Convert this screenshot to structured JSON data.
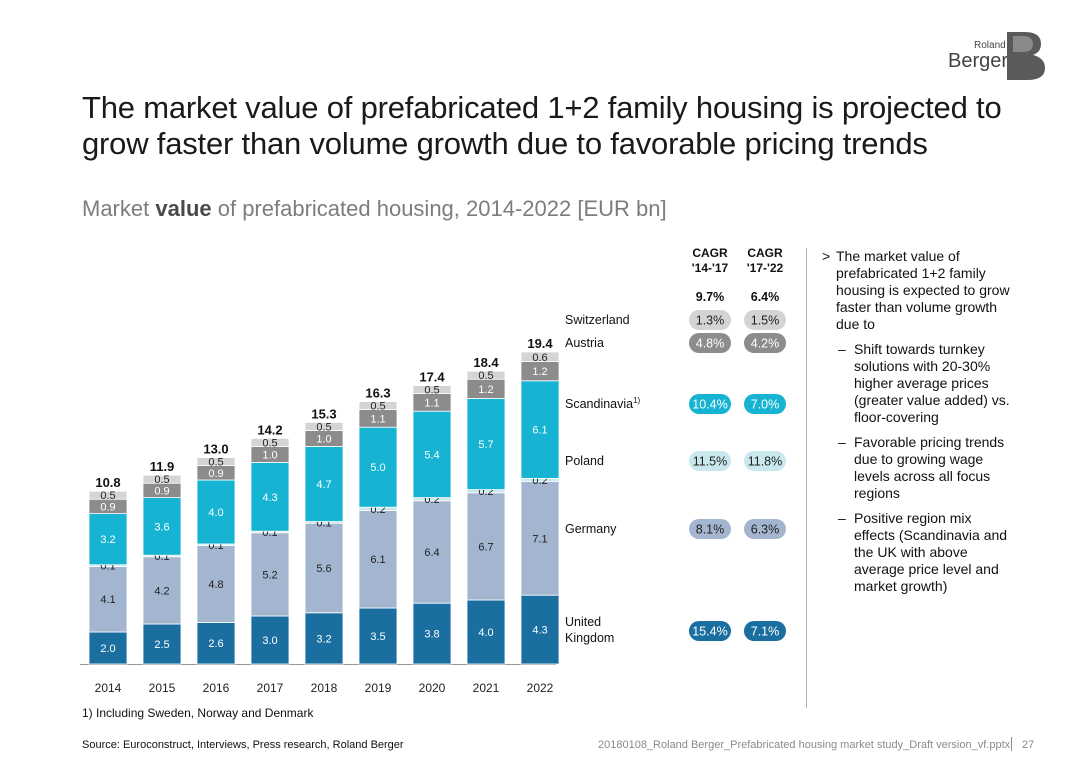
{
  "logo": {
    "small_text": "Roland",
    "big_text": "Berger"
  },
  "title": "The market value of prefabricated 1+2 family housing is projected to grow faster than volume growth due to favorable pricing trends",
  "subtitle": {
    "prefix": "Market ",
    "bold": "value",
    "suffix": " of prefabricated housing, 2014-2022 [EUR bn]"
  },
  "chart_data": {
    "type": "bar",
    "stacked": true,
    "unit": "EUR bn",
    "categories": [
      "2014",
      "2015",
      "2016",
      "2017",
      "2018",
      "2019",
      "2020",
      "2021",
      "2022"
    ],
    "series": [
      {
        "name": "United Kingdom",
        "color": "#1a6fa0",
        "label_color": "#ffffff",
        "values": [
          2.0,
          2.5,
          2.6,
          3.0,
          3.2,
          3.5,
          3.8,
          4.0,
          4.3
        ],
        "value_labels": [
          "2.0",
          "2.5",
          "2.6",
          "3.0",
          "3.2",
          "3.5",
          "3.8",
          "4.0",
          "4.3"
        ]
      },
      {
        "name": "Germany",
        "color": "#a4b6cf",
        "label_color": "#222222",
        "values": [
          4.1,
          4.2,
          4.8,
          5.2,
          5.6,
          6.1,
          6.4,
          6.7,
          7.1
        ],
        "value_labels": [
          "4.1",
          "4.2",
          "4.8",
          "5.2",
          "5.6",
          "6.1",
          "6.4",
          "6.7",
          "7.1"
        ]
      },
      {
        "name": "Poland",
        "color": "#c8e8ee",
        "label_color": "#222222",
        "values": [
          0.1,
          0.1,
          0.1,
          0.1,
          0.1,
          0.2,
          0.2,
          0.2,
          0.2
        ],
        "value_labels": [
          "0.1",
          "0.1",
          "0.1",
          "0.1",
          "0.1",
          "0.2",
          "0.2",
          "0.2",
          "0.2"
        ]
      },
      {
        "name": "Scandinavia",
        "color": "#16b4d2",
        "label_color": "#ffffff",
        "values": [
          3.2,
          3.6,
          4.0,
          4.3,
          4.7,
          5.0,
          5.4,
          5.7,
          6.1
        ],
        "value_labels": [
          "3.2",
          "3.6",
          "4.0",
          "4.3",
          "4.7",
          "5.0",
          "5.4",
          "5.7",
          "6.1"
        ]
      },
      {
        "name": "Austria",
        "color": "#8c8c8c",
        "label_color": "#ffffff",
        "values": [
          0.9,
          0.9,
          0.9,
          1.0,
          1.0,
          1.1,
          1.1,
          1.2,
          1.2
        ],
        "value_labels": [
          "0.9",
          "0.9",
          "0.9",
          "1.0",
          "1.0",
          "1.1",
          "1.1",
          "1.2",
          "1.2"
        ]
      },
      {
        "name": "Switzerland",
        "color": "#d4d4d4",
        "label_color": "#222222",
        "values": [
          0.5,
          0.5,
          0.5,
          0.5,
          0.5,
          0.5,
          0.5,
          0.5,
          0.6
        ],
        "value_labels": [
          "0.5",
          "0.5",
          "0.5",
          "0.5",
          "0.5",
          "0.5",
          "0.5",
          "0.5",
          "0.6"
        ]
      }
    ],
    "totals": [
      "10.8",
      "11.9",
      "13.0",
      "14.2",
      "15.3",
      "16.3",
      "17.4",
      "18.4",
      "19.4"
    ],
    "legend": [
      {
        "label": "Switzerland",
        "cagr_14_17": "1.3%",
        "cagr_17_22": "1.5%",
        "pill_color": "#d4d4d4",
        "text_color": "#222222"
      },
      {
        "label": "Austria",
        "cagr_14_17": "4.8%",
        "cagr_17_22": "4.2%",
        "pill_color": "#8c8c8c",
        "text_color": "#ffffff"
      },
      {
        "label": "Scandinavia",
        "sup": "1)",
        "cagr_14_17": "10.4%",
        "cagr_17_22": "7.0%",
        "pill_color": "#16b4d2",
        "text_color": "#ffffff"
      },
      {
        "label": "Poland",
        "cagr_14_17": "11.5%",
        "cagr_17_22": "11.8%",
        "pill_color": "#c8e8ee",
        "text_color": "#222222"
      },
      {
        "label": "Germany",
        "cagr_14_17": "8.1%",
        "cagr_17_22": "6.3%",
        "pill_color": "#a4b6cf",
        "text_color": "#222222"
      },
      {
        "label": "United Kingdom",
        "cagr_14_17": "15.4%",
        "cagr_17_22": "7.1%",
        "pill_color": "#1a6fa0",
        "text_color": "#ffffff"
      }
    ],
    "cagr_headers": [
      {
        "line1": "CAGR",
        "line2": "'14-'17"
      },
      {
        "line1": "CAGR",
        "line2": "'17-'22"
      }
    ],
    "cagr_totals": [
      "9.7%",
      "6.4%"
    ],
    "ylim": [
      0,
      20
    ]
  },
  "notes": {
    "marker": ">",
    "main": "The market value of prefabricated 1+2 family housing is expected to grow faster than volume growth due to",
    "sub_marker": "–",
    "subs": [
      "Shift towards turnkey solutions with 20-30% higher average prices (greater value added) vs. floor-covering",
      "Favorable pricing trends due to growing wage levels across all focus regions",
      "Positive region mix effects (Scandinavia and the UK with above average price level and market growth)"
    ]
  },
  "footnote": "1) Including Sweden, Norway and Denmark",
  "source": "Source: Euroconstruct, Interviews, Press research, Roland Berger",
  "footer_file": "20180108_Roland Berger_Prefabricated housing market study_Draft version_vf.pptx",
  "page_number": "27"
}
